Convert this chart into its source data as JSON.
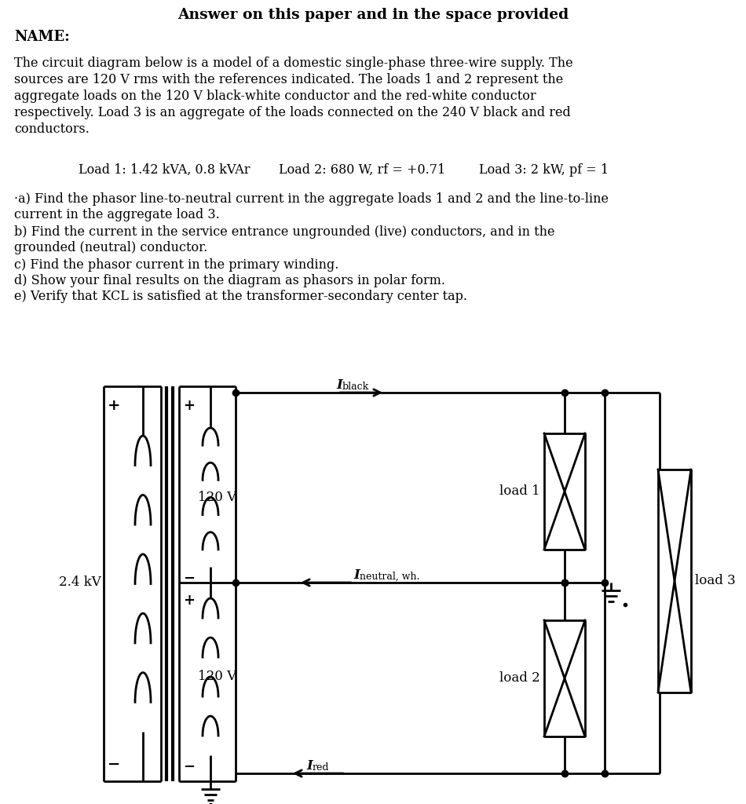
{
  "bg_color": "#ffffff",
  "title_text": "Answer on this paper and in the space provided",
  "name_label": "NAME:",
  "para1": "The circuit diagram below is a model of a domestic single-phase three-wire supply. The",
  "para2": "sources are 120 V rms with the references indicated. The loads 1 and 2 represent the",
  "para3": "aggregate loads on the 120 V black-white conductor and the red-white conductor",
  "para4": "respectively. Load 3 is an aggregate of the loads connected on the 240 V black and red",
  "para5": "conductors.",
  "load1_text": "Load 1: 1.42 kVA, 0.8 kVAr",
  "load2_text": "Load 2: 680 W, rf = +0.71",
  "load3_text": "Load 3: 2 kW, pf = 1",
  "q_a1": "·a) Find the phasor line-to-neutral current in the aggregate loads 1 and 2 and the line-to-line",
  "q_a2": "current in the aggregate load 3.",
  "q_b1": "b) Find the current in the service entrance ungrounded (live) conductors, and in the",
  "q_b2": "grounded (neutral) conductor.",
  "q_c": "c) Find the phasor current in the primary winding.",
  "q_d": "d) Show your final results on the diagram as phasors in polar form.",
  "q_e": "e) Verify that KCL is satisfied at the transformer-secondary center tap."
}
